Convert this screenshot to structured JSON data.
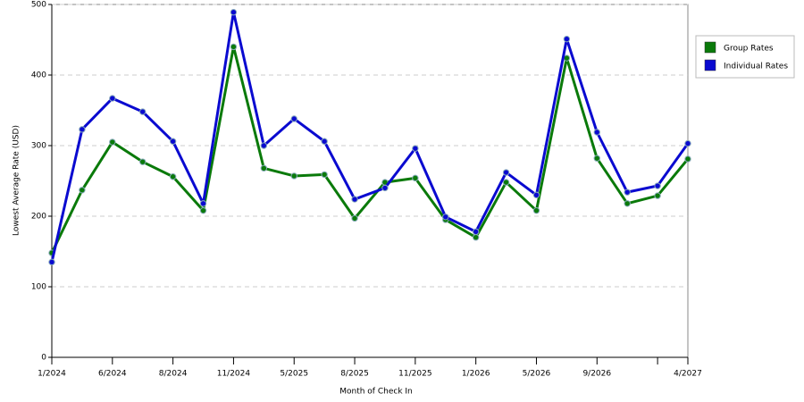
{
  "chart_data": {
    "type": "line",
    "x_label": "Month of Check In",
    "y_label": "Lowest Average Rate (USD)",
    "categories": [
      "1/2024",
      null,
      "6/2024",
      null,
      "8/2024",
      null,
      "11/2024",
      null,
      "5/2025",
      null,
      "8/2025",
      null,
      "11/2025",
      null,
      "1/2026",
      null,
      "5/2026",
      null,
      "9/2026",
      null,
      null,
      "4/2027"
    ],
    "series": [
      {
        "name": "Group Rates",
        "color": "#0a7a0a",
        "values": [
          148,
          237,
          305,
          277,
          256,
          208,
          440,
          268,
          257,
          259,
          197,
          248,
          254,
          195,
          170,
          248,
          208,
          424,
          282,
          218,
          229,
          281
        ]
      },
      {
        "name": "Individual Rates",
        "color": "#0a0ad0",
        "values": [
          135,
          323,
          367,
          348,
          306,
          218,
          489,
          300,
          338,
          306,
          224,
          240,
          296,
          199,
          178,
          262,
          230,
          451,
          319,
          234,
          243,
          303
        ]
      }
    ],
    "ylim": [
      0,
      500
    ],
    "yticks": [
      0,
      100,
      200,
      300,
      400,
      500
    ],
    "grid": true,
    "legend": "right"
  }
}
